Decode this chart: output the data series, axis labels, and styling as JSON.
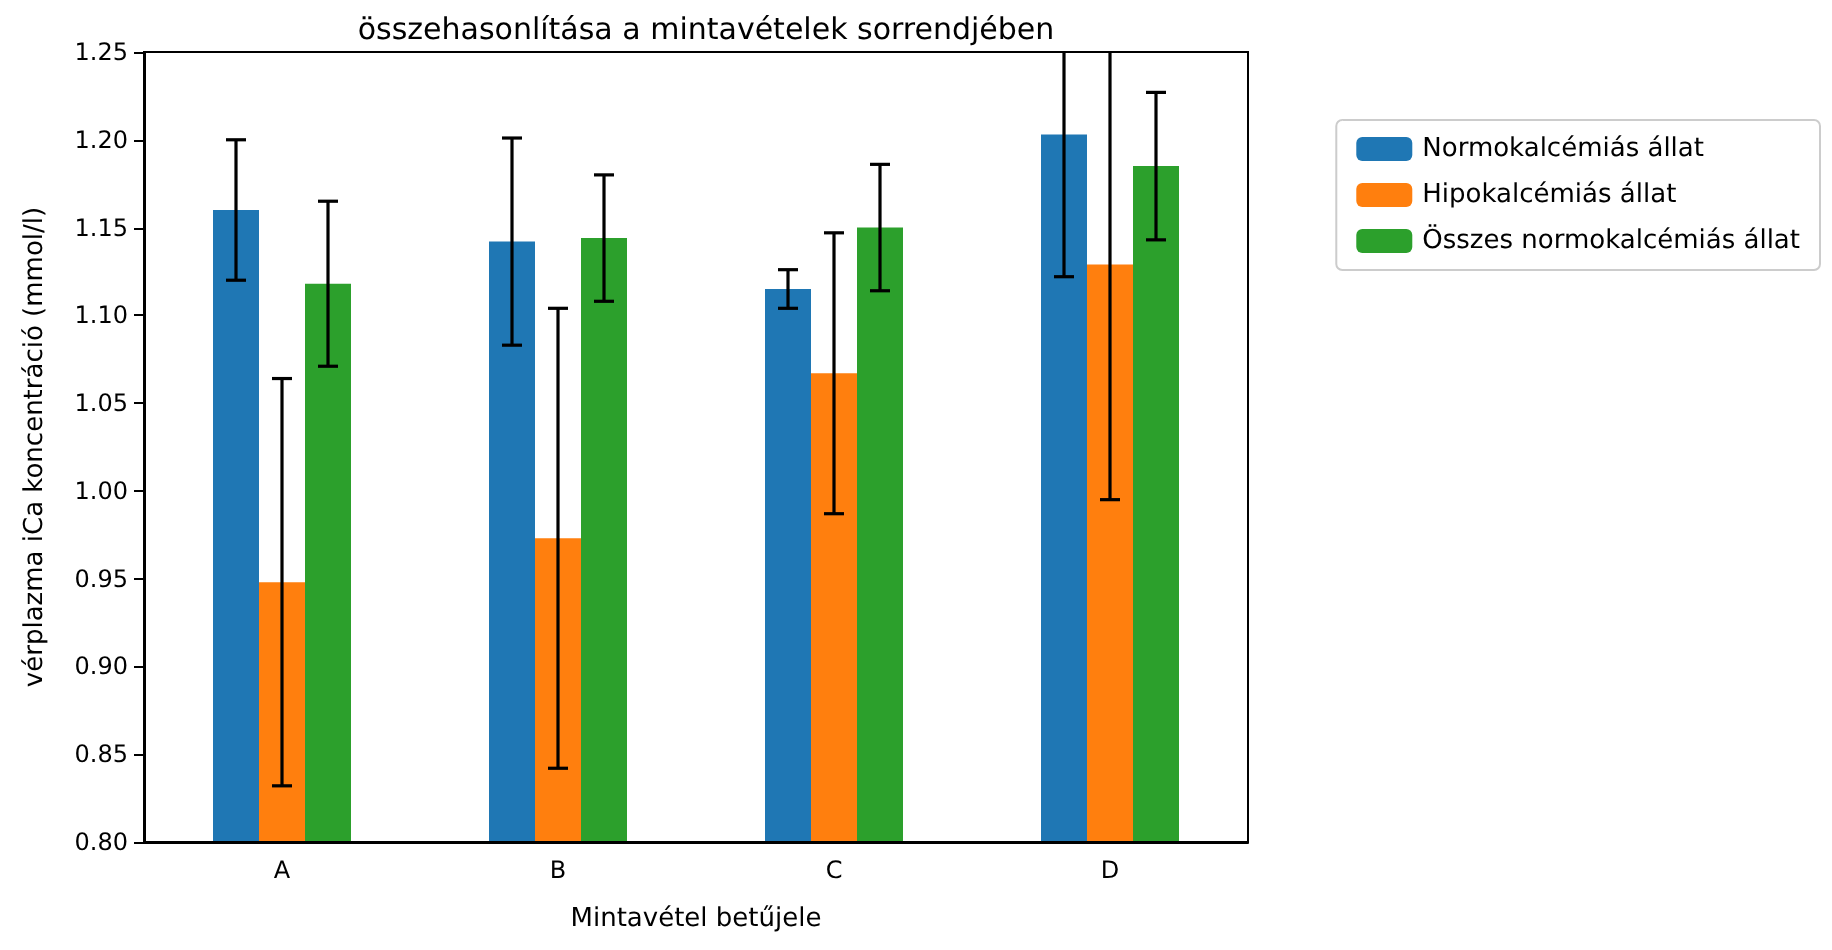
{
  "chart_data": {
    "type": "bar",
    "title": "összehasonlítása a mintavételek sorrendjében",
    "xlabel": "Mintavétel betűjele",
    "ylabel": "vérplazma iCa koncentráció (mmol/l)",
    "categories": [
      "A",
      "B",
      "C",
      "D"
    ],
    "series": [
      {
        "name": "Normokalcémiás állat",
        "color": "#1f77b4",
        "values": [
          1.16,
          1.142,
          1.115,
          1.203
        ],
        "errors": [
          0.04,
          0.059,
          0.011,
          0.081
        ]
      },
      {
        "name": "Hipokalcémiás állat",
        "color": "#ff7f0e",
        "values": [
          0.948,
          0.973,
          1.067,
          1.129
        ],
        "errors": [
          0.116,
          0.131,
          0.08,
          0.134
        ]
      },
      {
        "name": "Összes normokalcémiás állat",
        "color": "#2ca02c",
        "values": [
          1.118,
          1.144,
          1.15,
          1.185
        ],
        "errors": [
          0.047,
          0.036,
          0.036,
          0.042
        ]
      }
    ],
    "ylim": [
      0.8,
      1.25
    ],
    "yticks": [
      {
        "value": 0.8,
        "label": "0.80"
      },
      0.85,
      {
        "value": 0.9,
        "label": "0.90"
      },
      0.95,
      {
        "value": 1.0,
        "label": "1.00"
      },
      1.05,
      {
        "value": 1.1,
        "label": "1.10"
      },
      1.15,
      {
        "value": 1.2,
        "label": "1.20"
      },
      1.25
    ],
    "grid": false,
    "legend": "right"
  }
}
